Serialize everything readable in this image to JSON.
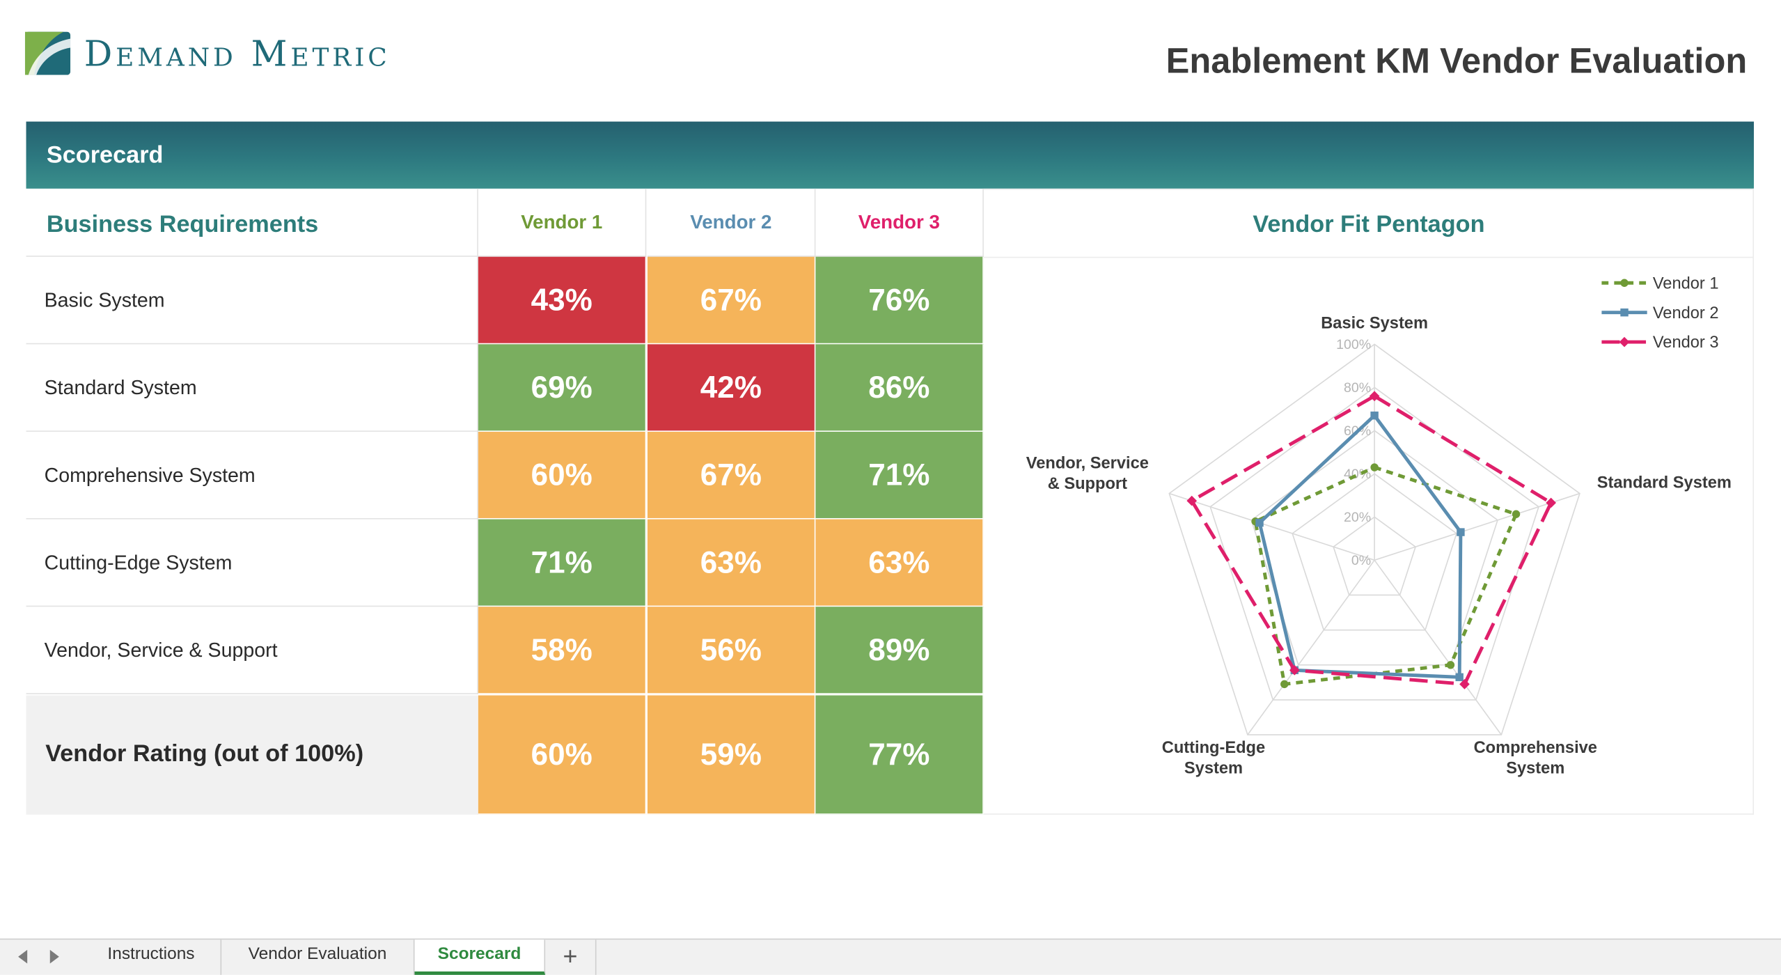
{
  "brand": {
    "name": "Demand Metric",
    "logo_icon": "demand-metric-logo"
  },
  "document_title": "Enablement KM Vendor Evaluation",
  "section_title": "Scorecard",
  "table": {
    "requirements_header": "Business Requirements",
    "vendors": [
      {
        "label": "Vendor 1",
        "color": "#6f9a36"
      },
      {
        "label": "Vendor 2",
        "color": "#5a8db0"
      },
      {
        "label": "Vendor 3",
        "color": "#df1f6a"
      }
    ],
    "rows": [
      {
        "label": "Basic System",
        "values": [
          "43%",
          "67%",
          "76%"
        ],
        "status": [
          "red",
          "orange",
          "green"
        ]
      },
      {
        "label": "Standard System",
        "values": [
          "69%",
          "42%",
          "86%"
        ],
        "status": [
          "green",
          "red",
          "green"
        ]
      },
      {
        "label": "Comprehensive System",
        "values": [
          "60%",
          "67%",
          "71%"
        ],
        "status": [
          "orange",
          "orange",
          "green"
        ]
      },
      {
        "label": "Cutting-Edge System",
        "values": [
          "71%",
          "63%",
          "63%"
        ],
        "status": [
          "green",
          "orange",
          "orange"
        ]
      },
      {
        "label": "Vendor, Service & Support",
        "values": [
          "58%",
          "56%",
          "89%"
        ],
        "status": [
          "orange",
          "orange",
          "green"
        ]
      }
    ],
    "total": {
      "label": "Vendor Rating (out of 100%)",
      "values": [
        "60%",
        "59%",
        "77%"
      ],
      "status": [
        "orange",
        "orange",
        "green"
      ]
    },
    "status_colors": {
      "red": "#cf3641",
      "orange": "#f5b45a",
      "green": "#7aae5f"
    }
  },
  "chart_title": "Vendor Fit Pentagon",
  "chart_data": {
    "type": "radar",
    "axes": [
      "Basic System",
      "Standard System",
      "Comprehensive System",
      "Cutting-Edge System",
      "Vendor, Service & Support"
    ],
    "axis_label_lines": [
      [
        "Basic System"
      ],
      [
        "Standard System"
      ],
      [
        "Comprehensive",
        "System"
      ],
      [
        "Cutting-Edge",
        "System"
      ],
      [
        "Vendor, Service",
        "& Support"
      ]
    ],
    "rings": [
      "0%",
      "20%",
      "40%",
      "60%",
      "80%",
      "100%"
    ],
    "range": [
      0,
      100
    ],
    "legend_position": "top-right",
    "series": [
      {
        "name": "Vendor 1",
        "values": [
          43,
          69,
          60,
          71,
          58
        ],
        "color": "#6f9a36",
        "style": "dashed",
        "marker": "circle"
      },
      {
        "name": "Vendor 2",
        "values": [
          67,
          42,
          67,
          63,
          56
        ],
        "color": "#5a8db0",
        "style": "solid",
        "marker": "square"
      },
      {
        "name": "Vendor 3",
        "values": [
          76,
          86,
          71,
          63,
          89
        ],
        "color": "#df1f6a",
        "style": "long-dash",
        "marker": "diamond"
      }
    ]
  },
  "sheet_tabs": {
    "items": [
      "Instructions",
      "Vendor Evaluation",
      "Scorecard"
    ],
    "active": "Scorecard",
    "add_label": "+"
  }
}
